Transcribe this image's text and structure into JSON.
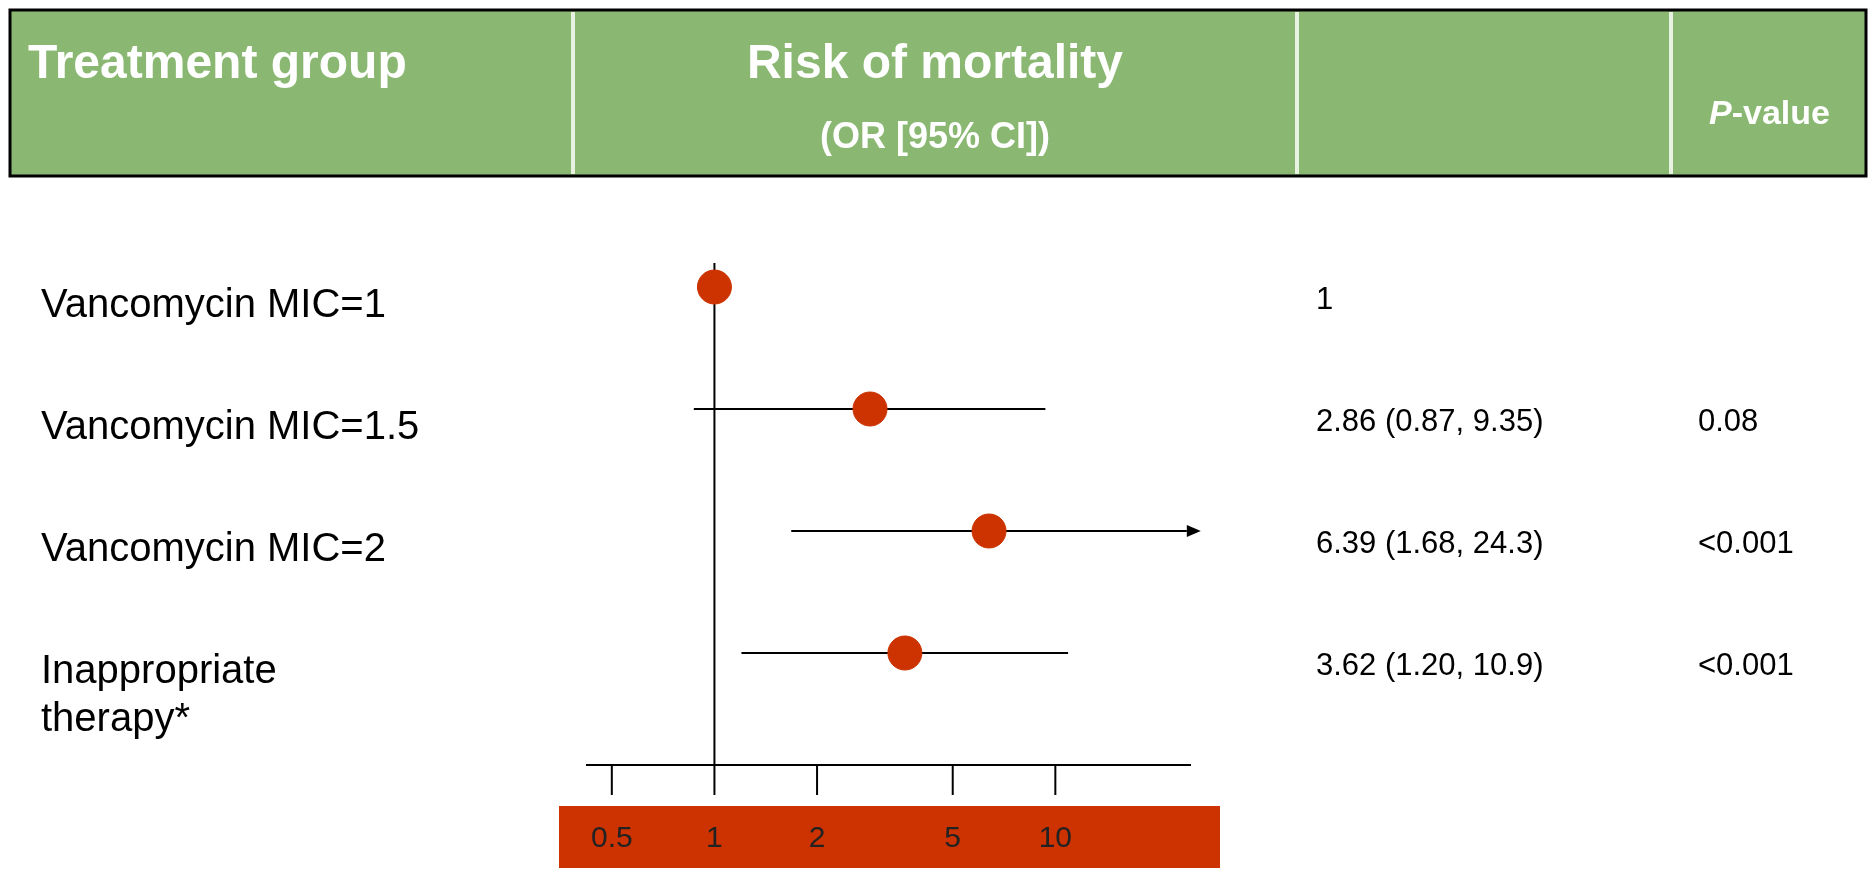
{
  "chart_data": {
    "type": "scatter",
    "orientation": "horizontal",
    "categories": [
      "Vancomycin MIC=1",
      "Vancomycin MIC=1.5",
      "Vancomycin MIC=2",
      "Inappropriate therapy*"
    ],
    "values": [
      1,
      2.86,
      6.39,
      3.62
    ],
    "errors": [
      null,
      [
        0.87,
        9.35
      ],
      [
        1.68,
        24.3
      ],
      [
        1.2,
        10.9
      ]
    ],
    "color": "#cc3300",
    "marker": "circle",
    "log": "x",
    "xlim": [
      0.42,
      25
    ],
    "xticks": [
      0.5,
      1,
      2,
      5,
      10
    ],
    "ref_lines": [
      {
        "axis": "x",
        "value": 1
      }
    ],
    "ylabel": "Treatment group",
    "xlabel": "Risk of mortality\n(OR [95% CI])",
    "annotations": [
      "P-value",
      "1",
      "2.86 (0.87, 9.35)",
      "0.08",
      "6.39 (1.68, 24.3)",
      "<0.001",
      "3.62 (1.20, 10.9)",
      "<0.001"
    ]
  }
}
